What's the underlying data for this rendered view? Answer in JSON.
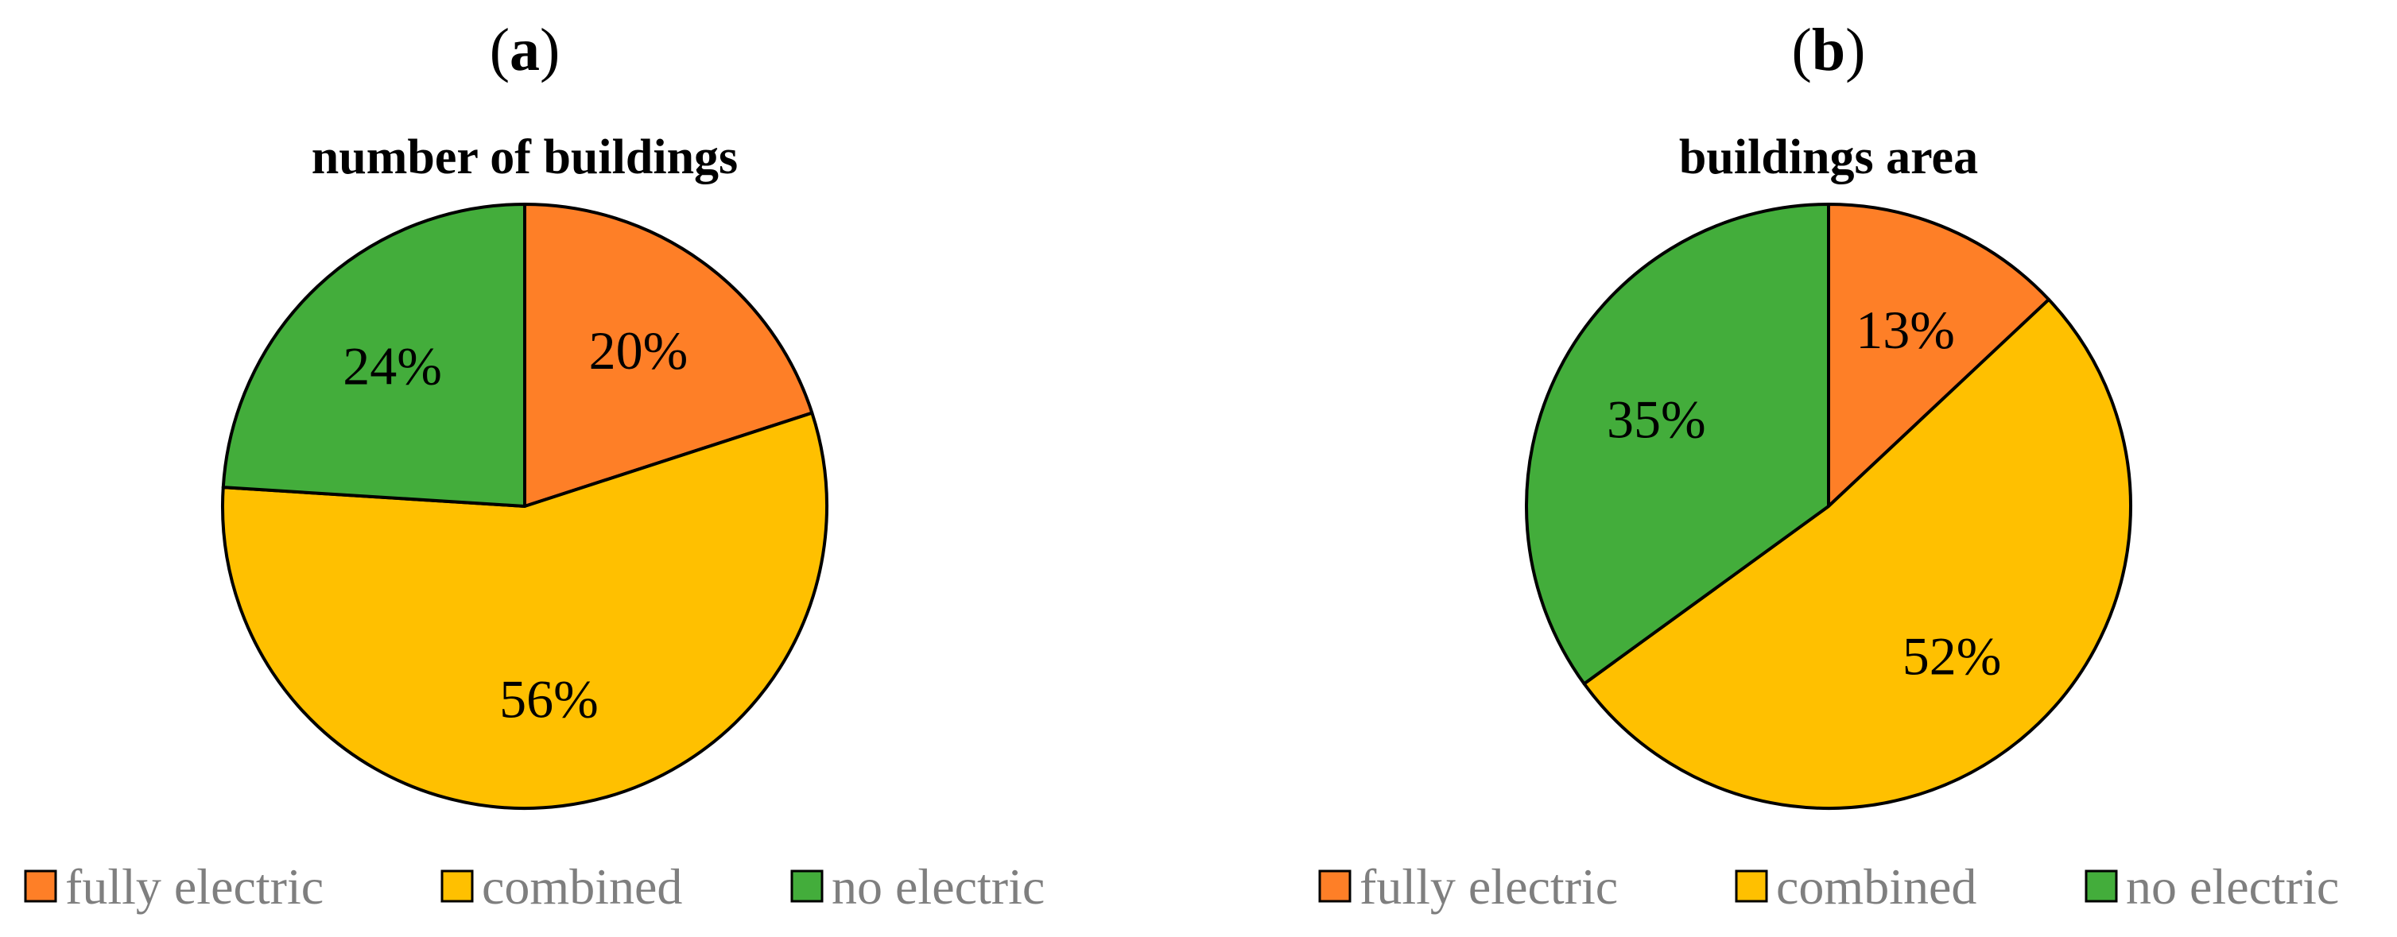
{
  "chart_data": [
    {
      "type": "pie",
      "panel_label": "a",
      "title": "number of buildings",
      "categories": [
        "fully electric",
        "combined",
        "no electric"
      ],
      "values": [
        20,
        56,
        24
      ],
      "data_labels": [
        "20%",
        "56%",
        "24%"
      ],
      "colors": [
        "#fe7f27",
        "#ffc000",
        "#43ad3b"
      ],
      "legend_position": "bottom"
    },
    {
      "type": "pie",
      "panel_label": "b",
      "title": "buildings area",
      "categories": [
        "fully electric",
        "combined",
        "no electric"
      ],
      "values": [
        13,
        52,
        35
      ],
      "data_labels": [
        "13%",
        "52%",
        "35%"
      ],
      "colors": [
        "#fe7f27",
        "#ffc000",
        "#43ad3b"
      ],
      "legend_position": "bottom"
    }
  ]
}
